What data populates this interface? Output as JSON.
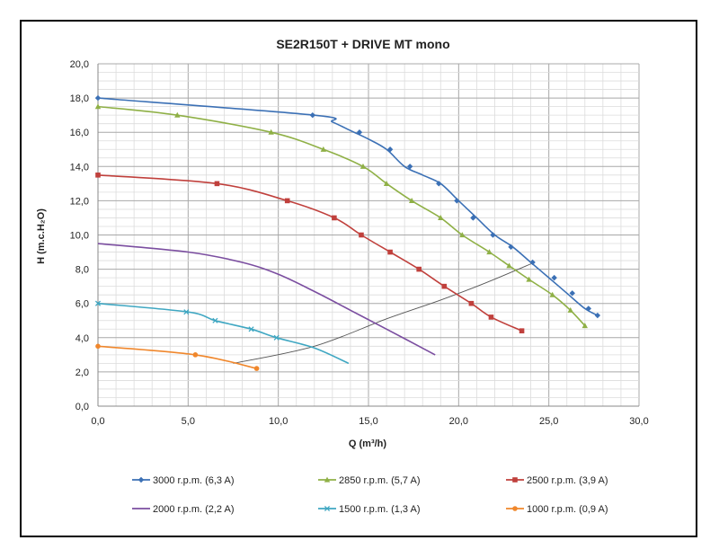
{
  "chart_data": {
    "type": "line",
    "title": "SE2R150T + DRIVE MT mono",
    "xlabel": "Q (m³/h)",
    "ylabel": "H (m.c.H₂O)",
    "xlim": [
      0,
      30
    ],
    "ylim": [
      0,
      20
    ],
    "xticks": [
      0,
      5,
      10,
      15,
      20,
      25,
      30
    ],
    "xtick_labels": [
      "0,0",
      "5,0",
      "10,0",
      "15,0",
      "20,0",
      "25,0",
      "30,0"
    ],
    "yticks": [
      0,
      2,
      4,
      6,
      8,
      10,
      12,
      14,
      16,
      18,
      20
    ],
    "ytick_labels": [
      "0,0",
      "2,0",
      "4,0",
      "6,0",
      "8,0",
      "10,0",
      "12,0",
      "14,0",
      "16,0",
      "18,0",
      "20,0"
    ],
    "grid": true,
    "legend_position": "bottom",
    "series": [
      {
        "name": "3000 r.p.m. (6,3 A)",
        "color": "#3b70b5",
        "marker": "diamond",
        "x": [
          0,
          12,
          13,
          14,
          15,
          16,
          17,
          18,
          19,
          20,
          21,
          22,
          23,
          24,
          25,
          26,
          27,
          27.7
        ],
        "y": [
          18.0,
          17.0,
          16.6,
          16.1,
          15.6,
          15.0,
          14.0,
          13.5,
          13.0,
          12.0,
          11.0,
          10.0,
          9.3,
          8.4,
          7.5,
          6.6,
          5.7,
          5.3
        ],
        "markers_x": [
          0,
          11.9,
          14.5,
          16.2,
          17.3,
          18.9,
          19.9,
          20.8,
          21.9,
          22.9,
          24.1,
          25.3,
          26.3,
          27.2,
          27.7
        ],
        "markers_y": [
          18.0,
          17.0,
          16.0,
          15.0,
          14.0,
          13.0,
          12.0,
          11.0,
          10.0,
          9.3,
          8.4,
          7.5,
          6.6,
          5.7,
          5.3
        ]
      },
      {
        "name": "2850 r.p.m. (5,7 A)",
        "color": "#8fb046",
        "marker": "triangle",
        "x": [
          0,
          4.4,
          9.6,
          12.5,
          14.7,
          16.0,
          17.4,
          19.0,
          20.2,
          21.7,
          22.8,
          23.9,
          25.2,
          26.2,
          27.0
        ],
        "y": [
          17.5,
          17.0,
          16.0,
          15.0,
          14.0,
          13.0,
          12.0,
          11.0,
          10.0,
          9.0,
          8.2,
          7.4,
          6.5,
          5.6,
          4.7
        ],
        "markers_x": [
          0,
          4.4,
          9.6,
          12.5,
          14.7,
          16.0,
          17.4,
          19.0,
          20.2,
          21.7,
          22.8,
          23.9,
          25.2,
          26.2,
          27.0
        ],
        "markers_y": [
          17.5,
          17.0,
          16.0,
          15.0,
          14.0,
          13.0,
          12.0,
          11.0,
          10.0,
          9.0,
          8.2,
          7.4,
          6.5,
          5.6,
          4.7
        ]
      },
      {
        "name": "2500 r.p.m. (3,9 A)",
        "color": "#c0403c",
        "marker": "square",
        "x": [
          0,
          6.6,
          10.5,
          13.1,
          14.6,
          16.2,
          17.8,
          19.2,
          20.7,
          21.8,
          23.5
        ],
        "y": [
          13.5,
          13.0,
          12.0,
          11.0,
          10.0,
          9.0,
          8.0,
          7.0,
          6.0,
          5.2,
          4.4
        ],
        "markers_x": [
          0,
          6.6,
          10.5,
          13.1,
          14.6,
          16.2,
          17.8,
          19.2,
          20.7,
          21.8,
          23.5
        ],
        "markers_y": [
          13.5,
          13.0,
          12.0,
          11.0,
          10.0,
          9.0,
          8.0,
          7.0,
          6.0,
          5.2,
          4.4
        ]
      },
      {
        "name": "2000 r.p.m. (2,2 A)",
        "color": "#7b4ea0",
        "marker": "none",
        "x": [
          0,
          5,
          8,
          10,
          12,
          14,
          16,
          18.7
        ],
        "y": [
          9.5,
          9.0,
          8.4,
          7.7,
          6.7,
          5.6,
          4.5,
          3.0
        ],
        "markers_x": [],
        "markers_y": []
      },
      {
        "name": "1500 r.p.m. (1,3 A)",
        "color": "#3fa7c2",
        "marker": "x",
        "x": [
          0,
          5,
          6.5,
          8.5,
          9.9,
          12,
          13.9
        ],
        "y": [
          6.0,
          5.5,
          5.0,
          4.5,
          4.0,
          3.4,
          2.5
        ],
        "markers_x": [
          0,
          4.9,
          6.5,
          8.5,
          9.9
        ],
        "markers_y": [
          6.0,
          5.5,
          5.0,
          4.5,
          4.0
        ]
      },
      {
        "name": "1000 r.p.m. (0,9 A)",
        "color": "#f0872c",
        "marker": "circle",
        "x": [
          0,
          5.4,
          8.8
        ],
        "y": [
          3.5,
          3.0,
          2.2
        ],
        "markers_x": [
          0,
          5.4,
          8.8
        ],
        "markers_y": [
          3.5,
          3.0,
          2.2
        ]
      }
    ],
    "reference_line": {
      "name": "system curve",
      "color": "#555555",
      "x": [
        7.5,
        12,
        16,
        19,
        21.5,
        24.2
      ],
      "y": [
        2.5,
        3.5,
        5.1,
        6.2,
        7.2,
        8.4
      ]
    }
  }
}
